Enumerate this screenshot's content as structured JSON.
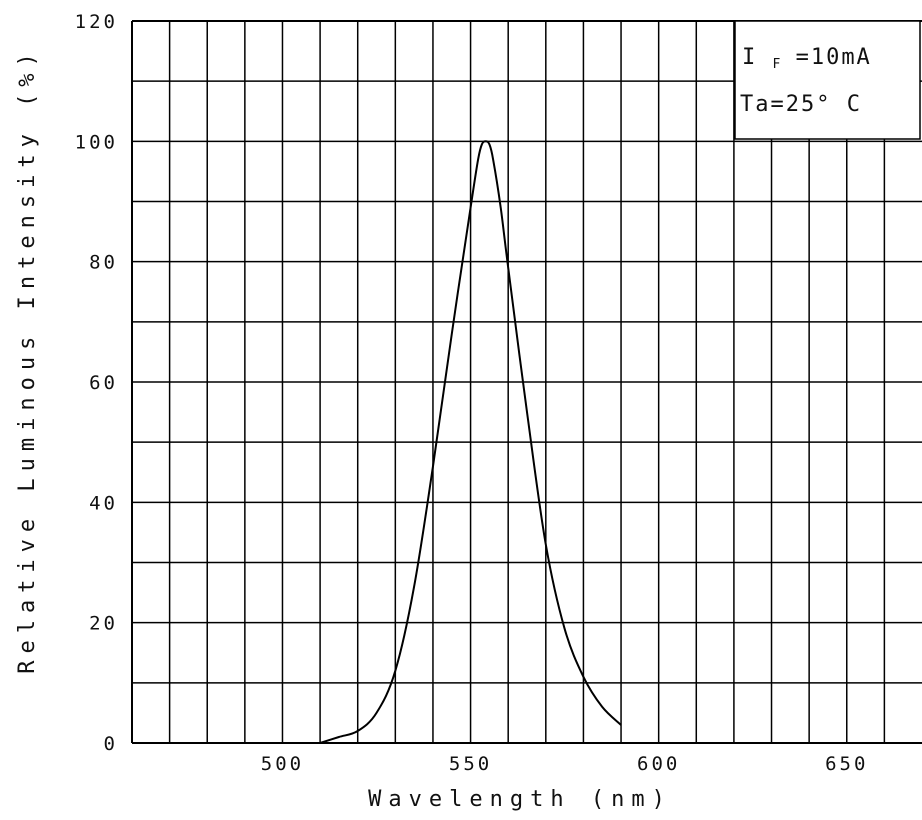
{
  "chart_data": {
    "type": "line",
    "title": "",
    "xlabel": "Wavelength (nm)",
    "ylabel": "Relative Luminous Intensity (%)",
    "xlim": [
      460,
      670
    ],
    "ylim": [
      0,
      120
    ],
    "x_ticks": [
      "500",
      "550",
      "600",
      "650"
    ],
    "y_ticks": [
      "0",
      "20",
      "40",
      "60",
      "80",
      "100",
      "120"
    ],
    "grid": true,
    "x_gridline_step": 10,
    "y_gridline_step": 10,
    "annotation": {
      "line1_main": "I",
      "line1_sub": "F",
      "line1_rest": "=10mA",
      "line2": "Ta=25° C"
    },
    "series": [
      {
        "x": [
          510,
          515,
          520,
          525,
          530,
          535,
          540,
          545,
          550,
          552,
          553,
          554,
          555,
          556,
          558,
          560,
          565,
          570,
          575,
          580,
          585,
          590
        ],
        "y": [
          0,
          1,
          2,
          5,
          12,
          26,
          46,
          68,
          89,
          97,
          99.5,
          100,
          99.5,
          97,
          89,
          79,
          55,
          33,
          19,
          11,
          6,
          3
        ]
      }
    ]
  }
}
